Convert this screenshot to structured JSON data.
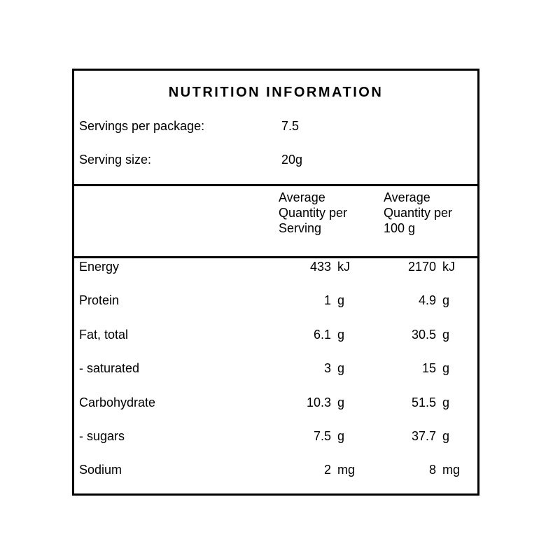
{
  "label": {
    "title": "NUTRITION INFORMATION",
    "servings_per_package": {
      "label": "Servings per package:",
      "value": "7.5"
    },
    "serving_size": {
      "label": "Serving size:",
      "value": "20g"
    },
    "column_headers": {
      "per_serving": "Average Quantity per Serving",
      "per_100g": "Average Quantity per 100 g"
    },
    "rows": [
      {
        "nutrient": "Energy",
        "serving_value": "433",
        "serving_unit": "kJ",
        "per100_value": "2170",
        "per100_unit": "kJ"
      },
      {
        "nutrient": "Protein",
        "serving_value": "1",
        "serving_unit": "g",
        "per100_value": "4.9",
        "per100_unit": "g"
      },
      {
        "nutrient": "Fat, total",
        "serving_value": "6.1",
        "serving_unit": "g",
        "per100_value": "30.5",
        "per100_unit": "g"
      },
      {
        "nutrient": "- saturated",
        "serving_value": "3",
        "serving_unit": "g",
        "per100_value": "15",
        "per100_unit": "g"
      },
      {
        "nutrient": "Carbohydrate",
        "serving_value": "10.3",
        "serving_unit": "g",
        "per100_value": "51.5",
        "per100_unit": "g"
      },
      {
        "nutrient": "- sugars",
        "serving_value": "7.5",
        "serving_unit": "g",
        "per100_value": "37.7",
        "per100_unit": "g"
      },
      {
        "nutrient": "Sodium",
        "serving_value": "2",
        "serving_unit": "mg",
        "per100_value": "8",
        "per100_unit": "mg"
      }
    ]
  }
}
